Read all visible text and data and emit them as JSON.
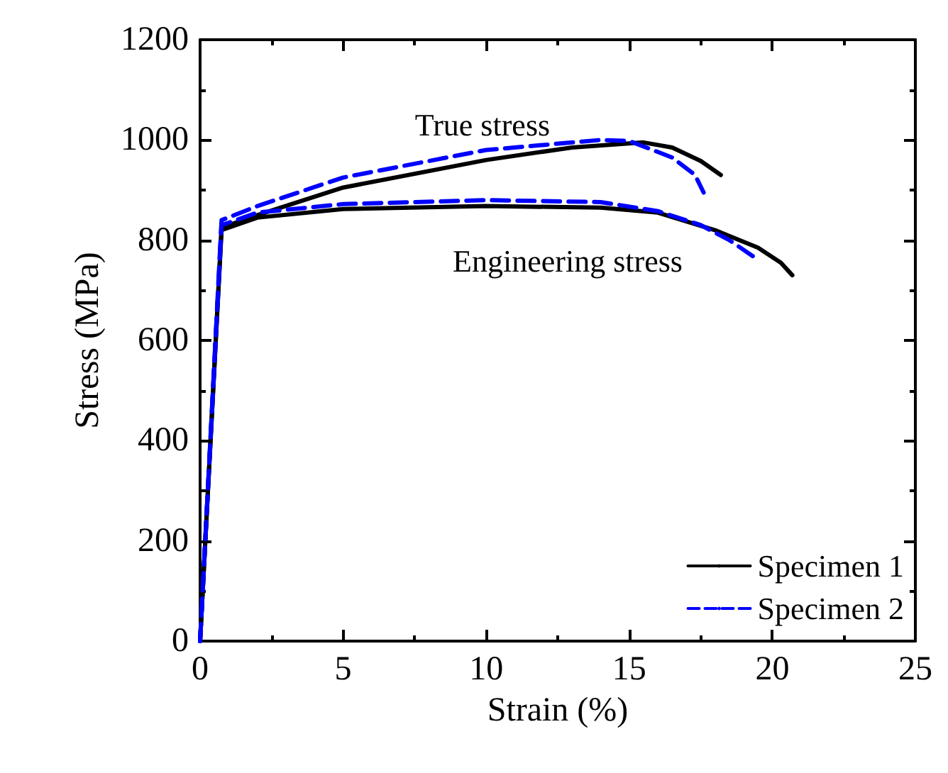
{
  "chart_data": {
    "type": "line",
    "xlabel": "Strain (%)",
    "ylabel": "Stress (MPa)",
    "xlim": [
      0,
      25
    ],
    "xticks": [
      0,
      5,
      10,
      15,
      20,
      25
    ],
    "ylim": [
      0,
      1200
    ],
    "yticks": [
      0,
      200,
      400,
      600,
      800,
      1000,
      1200
    ],
    "grid": false,
    "legend": "bottom right",
    "marker": "none",
    "annotations": [
      "True stress",
      "Engineering stress"
    ],
    "series": [
      {
        "name": "Specimen 1",
        "color": "#000000",
        "line_style": "solid",
        "x": [
          0,
          0.75,
          2,
          5,
          10,
          13,
          15.5,
          16.5,
          17.5,
          18.2
        ],
        "values": [
          0,
          825,
          850,
          905,
          960,
          985,
          995,
          985,
          958,
          930
        ]
      },
      {
        "color": "#000000",
        "line_style": "solid",
        "x": [
          0,
          0.75,
          2,
          5,
          10,
          14,
          16,
          18,
          19.5,
          20.3,
          20.7
        ],
        "values": [
          0,
          820,
          845,
          862,
          868,
          865,
          855,
          820,
          785,
          755,
          730
        ]
      },
      {
        "name": "Specimen 2",
        "color": "#0000ff",
        "line_style": "dashed",
        "x": [
          0,
          0.75,
          2,
          5,
          10,
          14,
          15,
          16.5,
          17.3,
          17.6
        ],
        "values": [
          0,
          840,
          868,
          925,
          980,
          1000,
          998,
          965,
          930,
          895
        ]
      },
      {
        "color": "#0000ff",
        "line_style": "dashed",
        "x": [
          0,
          0.75,
          2,
          5,
          10,
          14,
          16,
          17.5,
          18.5,
          19.4
        ],
        "values": [
          0,
          830,
          855,
          872,
          880,
          876,
          858,
          830,
          800,
          765
        ]
      }
    ]
  }
}
